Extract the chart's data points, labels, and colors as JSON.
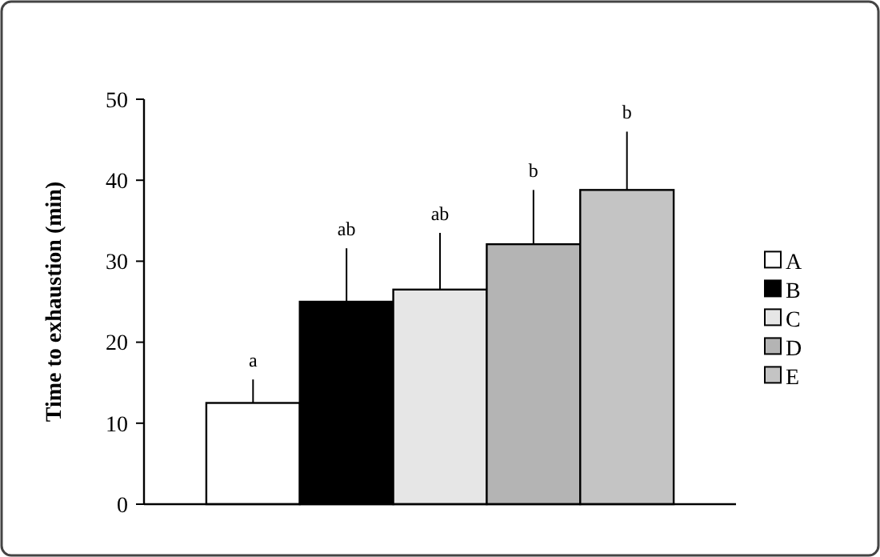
{
  "chart_data": {
    "type": "bar",
    "ylabel": "Time to exhaustion (min)",
    "categories": [
      null
    ],
    "series": [
      {
        "name": "A",
        "color": "#ffffff",
        "values": [
          12.5
        ],
        "errors": [
          [
            12.5,
            15.4
          ]
        ]
      },
      {
        "name": "B",
        "color": "#000000",
        "values": [
          25.0
        ],
        "errors": [
          [
            25.0,
            31.6
          ]
        ]
      },
      {
        "name": "C",
        "color": "#e6e6e6",
        "values": [
          26.5
        ],
        "errors": [
          [
            26.5,
            33.5
          ]
        ]
      },
      {
        "name": "D",
        "color": "#b4b4b4",
        "values": [
          32.1
        ],
        "errors": [
          [
            32.1,
            38.8
          ]
        ]
      },
      {
        "name": "E",
        "color": "#c4c4c4",
        "values": [
          38.8
        ],
        "errors": [
          [
            38.8,
            46.0
          ]
        ]
      }
    ],
    "annotations": [
      "a",
      "ab",
      "ab",
      "b",
      "b"
    ],
    "ylim": [
      0,
      50
    ],
    "yticks": [
      0,
      10,
      20,
      30,
      40,
      50
    ],
    "grid": false,
    "legend": "right"
  }
}
